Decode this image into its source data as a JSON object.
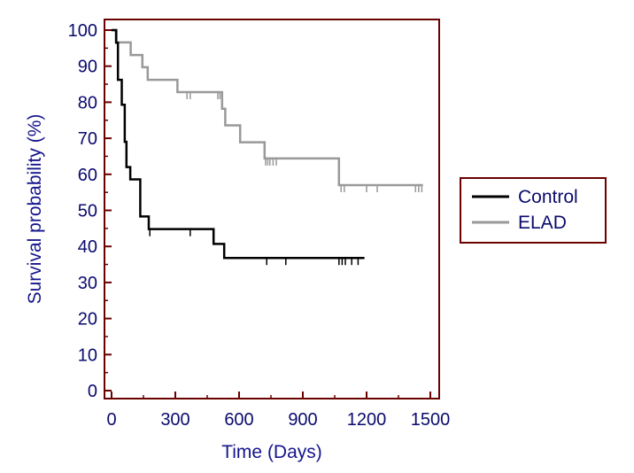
{
  "chart_data": {
    "type": "line",
    "title": "",
    "xlabel": "Time (Days)",
    "ylabel": "Survival probability (%)",
    "xlim": [
      0,
      1500
    ],
    "ylim": [
      0,
      100
    ],
    "xticks": [
      0,
      300,
      600,
      900,
      1200,
      1500
    ],
    "yticks": [
      0,
      10,
      20,
      30,
      40,
      50,
      60,
      70,
      80,
      90,
      100
    ],
    "legend_position": "right",
    "colors": {
      "axis": "#6b0000",
      "tick_text": "#0a0a6e",
      "Control": "#000000",
      "ELAD": "#999999"
    },
    "series": [
      {
        "name": "Control",
        "color": "#000000",
        "steps": [
          [
            0,
            100
          ],
          [
            22,
            96.5
          ],
          [
            30,
            86.2
          ],
          [
            48,
            79.3
          ],
          [
            62,
            69
          ],
          [
            70,
            62
          ],
          [
            88,
            58.6
          ],
          [
            135,
            48.3
          ],
          [
            175,
            44.8
          ],
          [
            480,
            40.7
          ],
          [
            530,
            36.8
          ],
          [
            1190,
            36.8
          ]
        ],
        "censored": [
          180,
          370,
          730,
          820,
          1070,
          1085,
          1100,
          1130,
          1160
        ]
      },
      {
        "name": "ELAD",
        "color": "#999999",
        "steps": [
          [
            0,
            100
          ],
          [
            20,
            96.6
          ],
          [
            90,
            93.1
          ],
          [
            145,
            89.7
          ],
          [
            170,
            86.2
          ],
          [
            310,
            82.8
          ],
          [
            520,
            78.2
          ],
          [
            535,
            73.6
          ],
          [
            605,
            68.9
          ],
          [
            720,
            64.4
          ],
          [
            1070,
            57.0
          ],
          [
            1465,
            57.0
          ]
        ],
        "censored": [
          355,
          370,
          500,
          510,
          725,
          735,
          745,
          760,
          775,
          1080,
          1095,
          1200,
          1250,
          1430,
          1445,
          1460
        ]
      }
    ]
  }
}
